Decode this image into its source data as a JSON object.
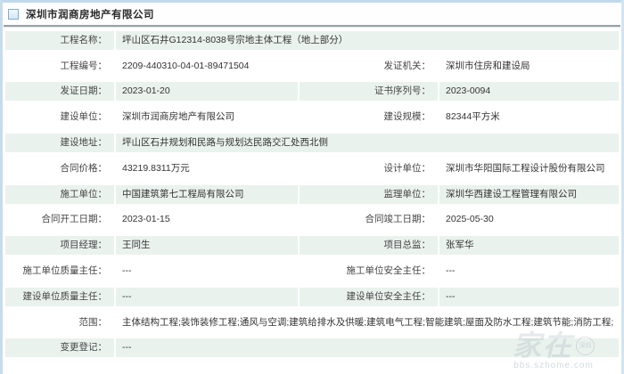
{
  "header": {
    "title": "深圳市润商房地产有限公司"
  },
  "rows": [
    {
      "l1": "工程名称：",
      "v1": "坪山区石井G12314-8038号宗地主体工程（地上部分）"
    },
    {
      "l1": "工程编号：",
      "v1": "2209-440310-04-01-89471504",
      "l2": "发证机关：",
      "v2": "深圳市住房和建设局"
    },
    {
      "l1": "发证日期：",
      "v1": "2023-01-20",
      "l2": "证书序列号：",
      "v2": "2023-0094"
    },
    {
      "l1": "建设单位：",
      "v1": "深圳市润商房地产有限公司",
      "l2": "建设规模：",
      "v2": "82344平方米"
    },
    {
      "l1": "建设地址：",
      "v1": "坪山区石井规划和民路与规划达民路交汇处西北侧"
    },
    {
      "l1": "合同价格：",
      "v1": "43219.8311万元",
      "l2": "设计单位：",
      "v2": "深圳市华阳国际工程设计股份有限公司"
    },
    {
      "l1": "施工单位：",
      "v1": "中国建筑第七工程局有限公司",
      "l2": "监理单位：",
      "v2": "深圳华西建设工程管理有限公司"
    },
    {
      "l1": "合同开工日期：",
      "v1": "2023-01-15",
      "l2": "合同竣工日期：",
      "v2": "2025-05-30"
    },
    {
      "l1": "项目经理：",
      "v1": "王同生",
      "l2": "项目总监：",
      "v2": "张军华"
    },
    {
      "l1": "施工单位质量主任：",
      "v1": "---",
      "l2": "施工单位安全主任：",
      "v2": "---"
    },
    {
      "l1": "建设单位质量主任：",
      "v1": "---",
      "l2": "建设单位安全主任：",
      "v2": "---"
    },
    {
      "l1": "范围：",
      "v1": "主体结构工程;装饰装修工程;通风与空调;建筑给排水及供暖;建筑电气工程;智能建筑;屋面及防水工程;建筑节能;消防工程;"
    },
    {
      "l1": "变更登记：",
      "v1": "---"
    }
  ],
  "watermark": {
    "brand": "家在",
    "badge": "深圳",
    "site": "bbs.szhome.com"
  },
  "colors": {
    "row_band": "#eaf2ee",
    "chrome_blue": "#c6dcec",
    "divider": "#9aa1a6"
  }
}
